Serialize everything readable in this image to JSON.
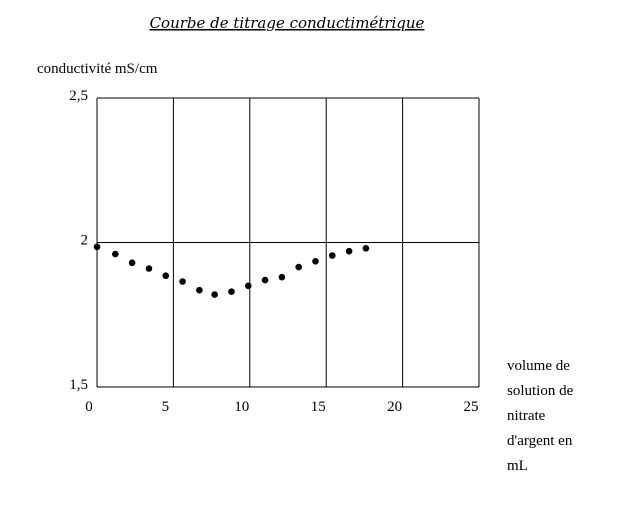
{
  "chart_data": {
    "type": "scatter",
    "title": "Courbe de titrage conductimétrique",
    "ylabel": "conductivité mS/cm",
    "xlabel_lines": [
      "volume de",
      "solution de",
      "nitrate",
      "d'argent en",
      "mL"
    ],
    "xlim": [
      0,
      25
    ],
    "ylim": [
      1.5,
      2.5
    ],
    "x_ticks": [
      0,
      5,
      10,
      15,
      20,
      25
    ],
    "x_tick_labels": [
      "0",
      "5",
      "10",
      "15",
      "20",
      "25"
    ],
    "y_ticks": [
      1.5,
      2,
      2.5
    ],
    "y_tick_labels": [
      "1,5",
      "2",
      "2,5"
    ],
    "grid": true,
    "legend": "none",
    "points": [
      {
        "x": 0,
        "y": 1.985
      },
      {
        "x": 1.2,
        "y": 1.96
      },
      {
        "x": 2.3,
        "y": 1.93
      },
      {
        "x": 3.4,
        "y": 1.91
      },
      {
        "x": 4.5,
        "y": 1.885
      },
      {
        "x": 5.6,
        "y": 1.865
      },
      {
        "x": 6.7,
        "y": 1.835
      },
      {
        "x": 7.7,
        "y": 1.82
      },
      {
        "x": 8.8,
        "y": 1.83
      },
      {
        "x": 9.9,
        "y": 1.85
      },
      {
        "x": 11.0,
        "y": 1.87
      },
      {
        "x": 12.1,
        "y": 1.88
      },
      {
        "x": 13.2,
        "y": 1.915
      },
      {
        "x": 14.3,
        "y": 1.935
      },
      {
        "x": 15.4,
        "y": 1.955
      },
      {
        "x": 16.5,
        "y": 1.97
      },
      {
        "x": 17.6,
        "y": 1.98
      }
    ],
    "colors": {
      "marks": "#000000",
      "frame": "#000000"
    }
  }
}
